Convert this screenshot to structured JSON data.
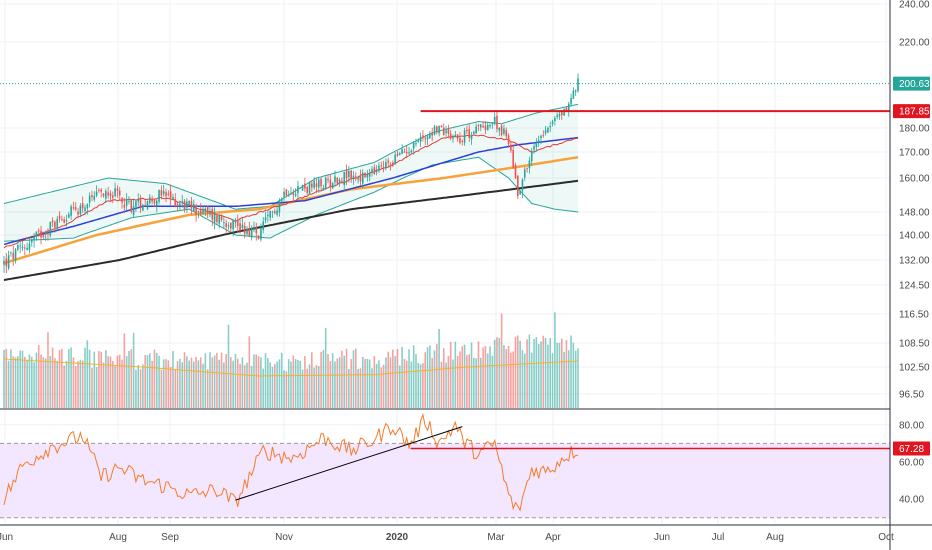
{
  "price_axis": {
    "ticks": [
      {
        "label": "240.00",
        "value": 240
      },
      {
        "label": "220.00",
        "value": 220
      },
      {
        "label": "180.00",
        "value": 180
      },
      {
        "label": "170.00",
        "value": 170
      },
      {
        "label": "160.00",
        "value": 160
      },
      {
        "label": "148.00",
        "value": 148
      },
      {
        "label": "140.00",
        "value": 140
      },
      {
        "label": "132.00",
        "value": 132
      },
      {
        "label": "124.50",
        "value": 124.5
      },
      {
        "label": "116.50",
        "value": 116.5
      },
      {
        "label": "108.50",
        "value": 108.5
      },
      {
        "label": "102.50",
        "value": 102.5
      },
      {
        "label": "96.50",
        "value": 96.5
      }
    ],
    "last_price": {
      "label": "200.63",
      "value": 200.63,
      "color": "#26a69a"
    },
    "resistance": {
      "label": "187.85",
      "value": 187.85,
      "color": "#e0151f"
    }
  },
  "rsi_axis": {
    "ticks": [
      {
        "label": "80.00",
        "value": 80
      },
      {
        "label": "60.00",
        "value": 60
      },
      {
        "label": "40.00",
        "value": 40
      }
    ],
    "last_rsi": {
      "label": "67.28",
      "value": 67.28,
      "color": "#e0151f"
    },
    "upper_band": 70,
    "lower_band": 30,
    "band_fill": "#f3e6ff"
  },
  "time_axis": {
    "labels": [
      {
        "text": "Jun",
        "bold": false
      },
      {
        "text": "Aug",
        "bold": false
      },
      {
        "text": "Sep",
        "bold": false
      },
      {
        "text": "Nov",
        "bold": false
      },
      {
        "text": "2020",
        "bold": true
      },
      {
        "text": "Mar",
        "bold": false
      },
      {
        "text": "Apr",
        "bold": false
      },
      {
        "text": "Jun",
        "bold": false
      },
      {
        "text": "Jul",
        "bold": false
      },
      {
        "text": "Aug",
        "bold": false
      },
      {
        "text": "Oct",
        "bold": false
      }
    ]
  },
  "colors": {
    "up": "#26a69a",
    "down": "#ef5350",
    "ma_fast": "#e53935",
    "ma_mid": "#2e3fd6",
    "ma_slow": "#f7a23b",
    "ma_long": "#2b2b2b",
    "bollinger": "#26a69a",
    "volume_ma": "#f0b429",
    "rsi_line": "#f57c2a"
  },
  "chart_data": {
    "type": "candlestick",
    "title": "",
    "anchors": {
      "close": [
        [
          0,
          131
        ],
        [
          10,
          137
        ],
        [
          25,
          146
        ],
        [
          38,
          152
        ],
        [
          45,
          156
        ],
        [
          55,
          150
        ],
        [
          68,
          154
        ],
        [
          80,
          150
        ],
        [
          92,
          146
        ],
        [
          100,
          144
        ],
        [
          110,
          140
        ],
        [
          122,
          156
        ],
        [
          135,
          157
        ],
        [
          148,
          161
        ],
        [
          155,
          160
        ],
        [
          160,
          162
        ],
        [
          167,
          166
        ],
        [
          178,
          174
        ],
        [
          187,
          180
        ],
        [
          197,
          176
        ],
        [
          205,
          180
        ],
        [
          212,
          183
        ],
        [
          218,
          175
        ],
        [
          222,
          155
        ],
        [
          226,
          165
        ],
        [
          232,
          178
        ],
        [
          238,
          184
        ],
        [
          243,
          189
        ],
        [
          248,
          201
        ]
      ],
      "ma20": [
        [
          0,
          136
        ],
        [
          25,
          143
        ],
        [
          45,
          152
        ],
        [
          70,
          153
        ],
        [
          100,
          145
        ],
        [
          122,
          151
        ],
        [
          148,
          159
        ],
        [
          168,
          165
        ],
        [
          190,
          176
        ],
        [
          205,
          177
        ],
        [
          218,
          175
        ],
        [
          228,
          170
        ],
        [
          238,
          173
        ],
        [
          248,
          176
        ]
      ],
      "ma50": [
        [
          0,
          137
        ],
        [
          30,
          143
        ],
        [
          60,
          150
        ],
        [
          100,
          150
        ],
        [
          130,
          152
        ],
        [
          168,
          160
        ],
        [
          205,
          170
        ],
        [
          222,
          173
        ],
        [
          248,
          176
        ]
      ],
      "ma100": [
        [
          0,
          131
        ],
        [
          40,
          140
        ],
        [
          80,
          147
        ],
        [
          110,
          149
        ],
        [
          150,
          156
        ],
        [
          190,
          160
        ],
        [
          220,
          164
        ],
        [
          248,
          168
        ]
      ],
      "ma200": [
        [
          0,
          126
        ],
        [
          50,
          132
        ],
        [
          100,
          141
        ],
        [
          150,
          149
        ],
        [
          200,
          154
        ],
        [
          248,
          159
        ]
      ],
      "bb_upper": [
        [
          0,
          151
        ],
        [
          30,
          157
        ],
        [
          45,
          160
        ],
        [
          70,
          158
        ],
        [
          100,
          149
        ],
        [
          115,
          150
        ],
        [
          135,
          160
        ],
        [
          160,
          166
        ],
        [
          185,
          178
        ],
        [
          205,
          183
        ],
        [
          215,
          182
        ],
        [
          230,
          187
        ],
        [
          248,
          191
        ]
      ],
      "bb_lower": [
        [
          0,
          138
        ],
        [
          30,
          139
        ],
        [
          55,
          146
        ],
        [
          80,
          149
        ],
        [
          100,
          140
        ],
        [
          115,
          139
        ],
        [
          135,
          147
        ],
        [
          160,
          155
        ],
        [
          185,
          165
        ],
        [
          205,
          168
        ],
        [
          218,
          160
        ],
        [
          228,
          151
        ],
        [
          238,
          149
        ],
        [
          248,
          148
        ]
      ],
      "volume": [
        [
          0,
          103
        ],
        [
          30,
          102
        ],
        [
          55,
          101.5
        ],
        [
          80,
          102
        ],
        [
          100,
          100.5
        ],
        [
          130,
          101.5
        ],
        [
          165,
          102
        ],
        [
          190,
          103.5
        ],
        [
          210,
          105
        ],
        [
          228,
          106
        ],
        [
          248,
          105
        ]
      ],
      "volume_ma": [
        [
          0,
          104.5
        ],
        [
          60,
          102.5
        ],
        [
          110,
          100.5
        ],
        [
          160,
          100.8
        ],
        [
          200,
          102.5
        ],
        [
          248,
          104
        ]
      ],
      "rsi": [
        [
          0,
          40
        ],
        [
          8,
          58
        ],
        [
          20,
          68
        ],
        [
          34,
          74
        ],
        [
          42,
          52
        ],
        [
          50,
          57
        ],
        [
          60,
          50
        ],
        [
          70,
          47
        ],
        [
          80,
          42
        ],
        [
          92,
          45
        ],
        [
          100,
          38
        ],
        [
          112,
          66
        ],
        [
          125,
          62
        ],
        [
          138,
          73
        ],
        [
          150,
          66
        ],
        [
          160,
          72
        ],
        [
          168,
          80
        ],
        [
          175,
          69
        ],
        [
          182,
          83
        ],
        [
          188,
          70
        ],
        [
          195,
          80
        ],
        [
          198,
          72
        ],
        [
          205,
          64
        ],
        [
          212,
          70
        ],
        [
          218,
          42
        ],
        [
          222,
          33
        ],
        [
          228,
          56
        ],
        [
          235,
          55
        ],
        [
          242,
          63
        ],
        [
          248,
          67
        ]
      ]
    },
    "trendlines": {
      "rsi_support": {
        "x": [
          100,
          198
        ],
        "y": [
          39.5,
          79
        ]
      },
      "price_resistance_start_x": 180
    },
    "n_bars": 249
  }
}
